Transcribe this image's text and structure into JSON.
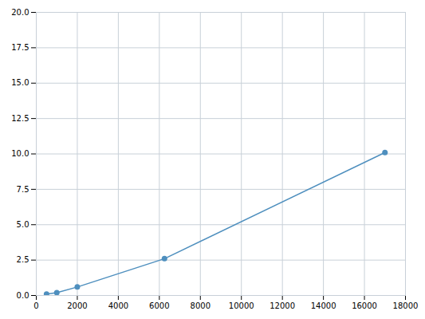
{
  "chart_data": {
    "type": "line",
    "x": [
      500,
      1000,
      2000,
      6250,
      17000
    ],
    "values": [
      0.1,
      0.2,
      0.6,
      2.6,
      10.1
    ],
    "color": "#4e8fbe",
    "marker": "circle",
    "xlim": [
      0,
      18000
    ],
    "ylim": [
      0,
      20
    ],
    "xticks": [
      0,
      2000,
      4000,
      6000,
      8000,
      10000,
      12000,
      14000,
      16000,
      18000
    ],
    "yticks": [
      {
        "value": 0,
        "label": "0.0"
      },
      2.5,
      {
        "value": 5,
        "label": "5.0"
      },
      7.5,
      {
        "value": 10,
        "label": "10.0"
      },
      12.5,
      {
        "value": 15,
        "label": "15.0"
      },
      17.5,
      {
        "value": 20,
        "label": "20.0"
      }
    ],
    "grid": true
  }
}
